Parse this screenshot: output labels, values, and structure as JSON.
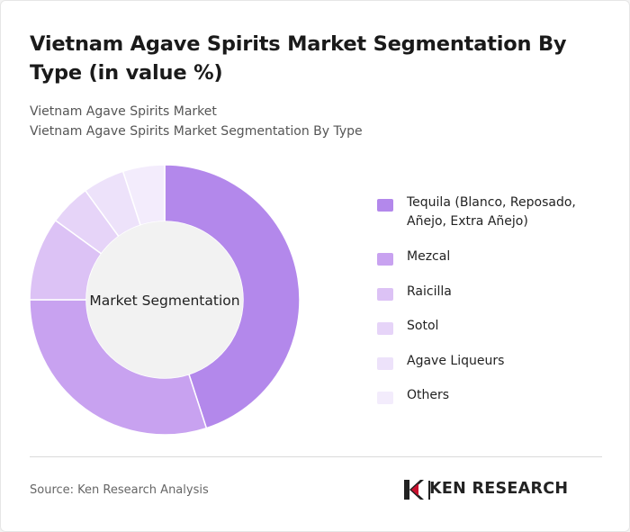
{
  "title": "Vietnam Agave Spirits Market Segmentation By Type (in value %)",
  "subtitle": {
    "line1": "Vietnam Agave Spirits Market",
    "line2": "Vietnam Agave Spirits Market Segmentation By Type"
  },
  "chart_data": {
    "type": "pie",
    "variant": "donut",
    "center_label": "Market Segmentation",
    "categories": [
      "Tequila (Blanco, Reposado, Añejo, Extra Añejo)",
      "Mezcal",
      "Raicilla",
      "Sotol",
      "Agave Liqueurs",
      "Others"
    ],
    "values": [
      45,
      30,
      10,
      5,
      5,
      5
    ],
    "colors": [
      "#b388eb",
      "#c8a2f0",
      "#dcc2f5",
      "#e6d4f8",
      "#ede2fa",
      "#f3ecfc"
    ],
    "legend_position": "right"
  },
  "footer": {
    "source": "Source: Ken Research Analysis",
    "logo_text": "KEN RESEARCH"
  }
}
